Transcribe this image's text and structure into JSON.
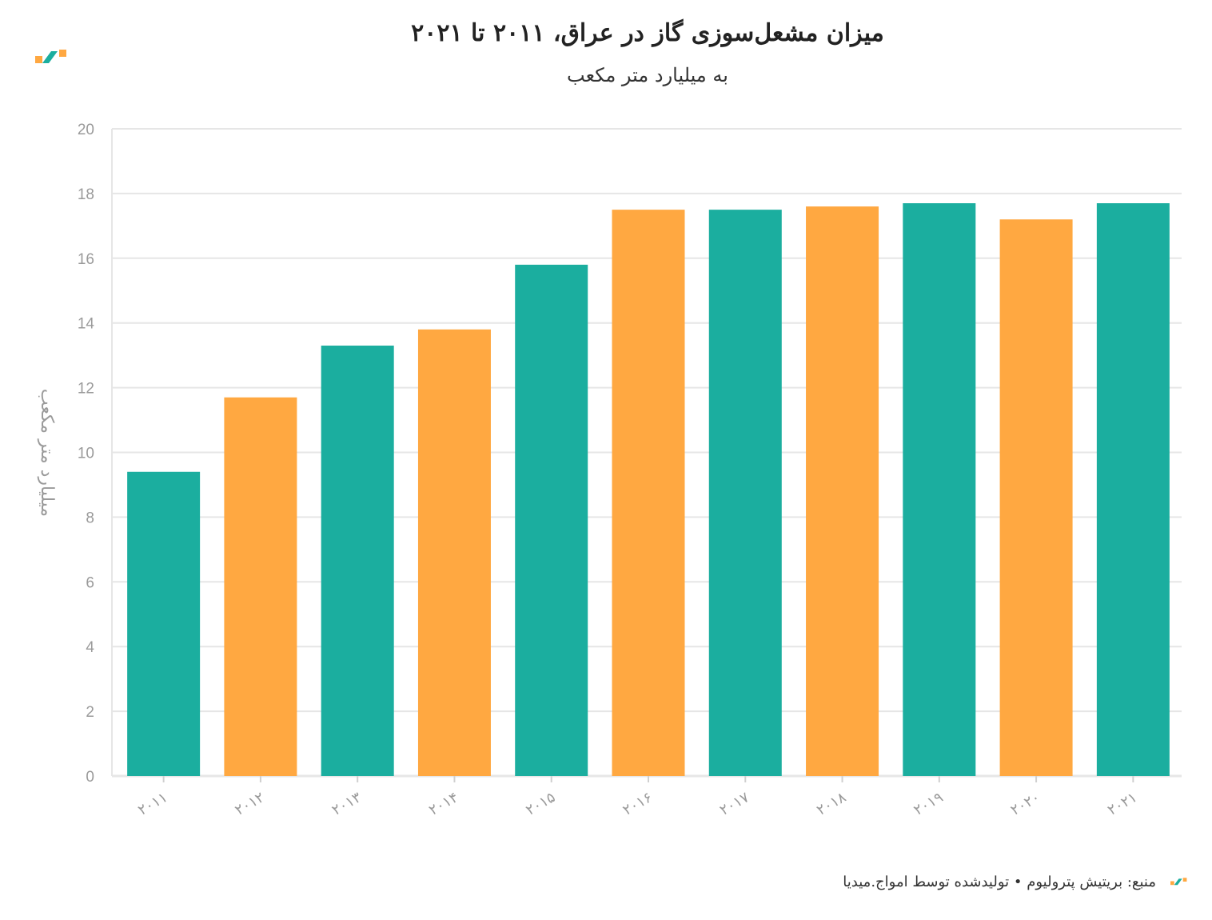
{
  "header": {
    "title": "میزان مشعل‌سوزی گاز در عراق، ۲۰۱۱ تا ۲۰۲۱",
    "subtitle": "به میلیارد متر مکعب"
  },
  "footer": {
    "source_text": "منبع: بریتیش پترولیوم • تولیدشده توسط امواج.میدیا"
  },
  "brand": {
    "logo_icon": "amwaj-logo-icon",
    "teal": "#1BAE9F",
    "orange": "#FFA841"
  },
  "chart_data": {
    "type": "bar",
    "title": "میزان مشعل‌سوزی گاز در عراق، ۲۰۱۱ تا ۲۰۲۱",
    "subtitle": "به میلیارد متر مکعب",
    "ylabel": "میلیارد متر مکعب",
    "xlabel": "",
    "categories": [
      "۲۰۱۱",
      "۲۰۱۲",
      "۲۰۱۳",
      "۲۰۱۴",
      "۲۰۱۵",
      "۲۰۱۶",
      "۲۰۱۷",
      "۲۰۱۸",
      "۲۰۱۹",
      "۲۰۲۰",
      "۲۰۲۱"
    ],
    "values": [
      9.4,
      11.7,
      13.3,
      13.8,
      15.8,
      17.5,
      17.5,
      17.6,
      17.7,
      17.2,
      17.7
    ],
    "bar_colors": [
      "#1BAE9F",
      "#FFA841",
      "#1BAE9F",
      "#FFA841",
      "#1BAE9F",
      "#FFA841",
      "#1BAE9F",
      "#FFA841",
      "#1BAE9F",
      "#FFA841",
      "#1BAE9F"
    ],
    "ylim": [
      0,
      20
    ],
    "yticks": [
      0,
      2,
      4,
      6,
      8,
      10,
      12,
      14,
      16,
      18,
      20
    ],
    "grid": true,
    "legend": "none"
  }
}
